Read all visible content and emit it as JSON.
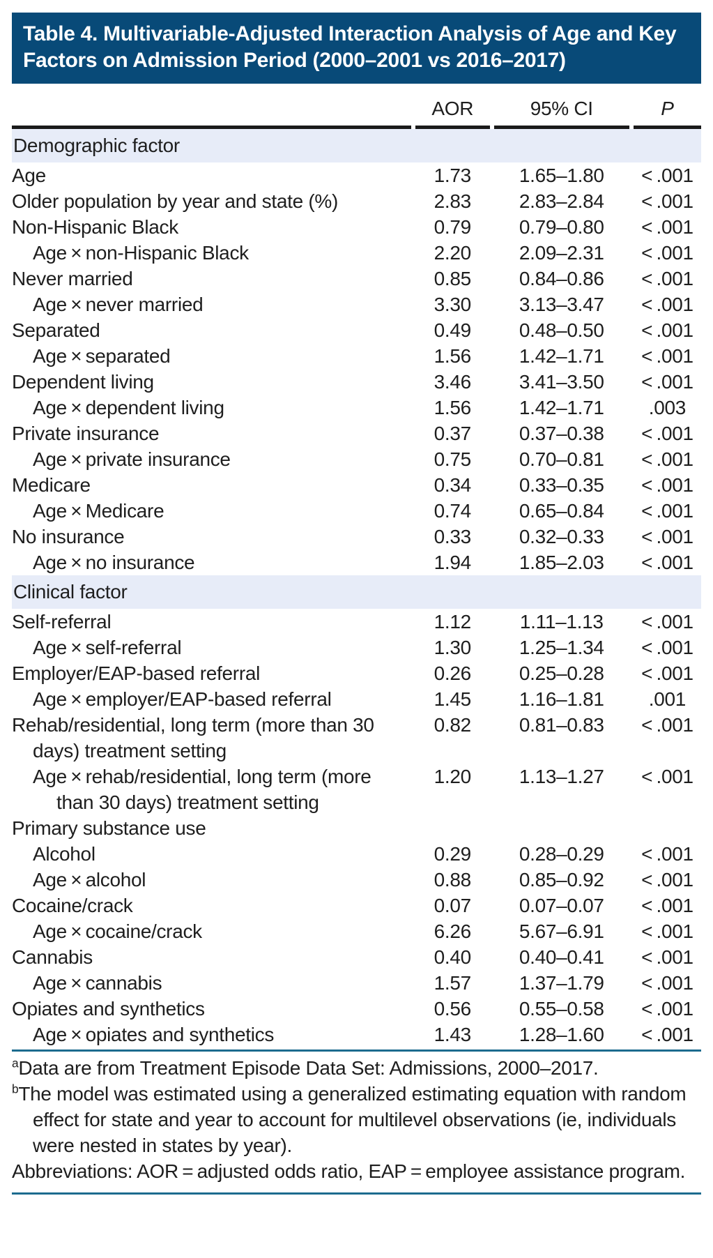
{
  "title": "Table 4. Multivariable-Adjusted Interaction Analysis of Age and Key Factors on Admission Period (2000–2001 vs 2016–2017)",
  "columns": {
    "aor": "AOR",
    "ci": "95% CI",
    "p": "P"
  },
  "colors": {
    "title_bar_bg": "#084a78",
    "title_text": "#ffffff",
    "section_row_bg": "#e7ecf8",
    "body_text": "#1e1e1e",
    "header_rule": "#1a1a1a",
    "accent_rule": "#1c6b8e"
  },
  "sections": [
    {
      "label": "Demographic factor",
      "rows": [
        {
          "label": "Age",
          "indent": 0,
          "aor": "1.73",
          "ci": "1.65–1.80",
          "p": "< .001"
        },
        {
          "label": "Older population by year and state (%)",
          "indent": 0,
          "aor": "2.83",
          "ci": "2.83–2.84",
          "p": "< .001"
        },
        {
          "label": "Non-Hispanic Black",
          "indent": 0,
          "aor": "0.79",
          "ci": "0.79–0.80",
          "p": "< .001"
        },
        {
          "label": "Age × non-Hispanic Black",
          "indent": 1,
          "aor": "2.20",
          "ci": "2.09–2.31",
          "p": "< .001"
        },
        {
          "label": "Never married",
          "indent": 0,
          "aor": "0.85",
          "ci": "0.84–0.86",
          "p": "< .001"
        },
        {
          "label": "Age × never married",
          "indent": 1,
          "aor": "3.30",
          "ci": "3.13–3.47",
          "p": "< .001"
        },
        {
          "label": "Separated",
          "indent": 0,
          "aor": "0.49",
          "ci": "0.48–0.50",
          "p": "< .001"
        },
        {
          "label": "Age × separated",
          "indent": 1,
          "aor": "1.56",
          "ci": "1.42–1.71",
          "p": "< .001"
        },
        {
          "label": "Dependent living",
          "indent": 0,
          "aor": "3.46",
          "ci": "3.41–3.50",
          "p": "< .001"
        },
        {
          "label": "Age × dependent living",
          "indent": 1,
          "aor": "1.56",
          "ci": "1.42–1.71",
          "p": ".003"
        },
        {
          "label": "Private insurance",
          "indent": 0,
          "aor": "0.37",
          "ci": "0.37–0.38",
          "p": "< .001"
        },
        {
          "label": "Age × private insurance",
          "indent": 1,
          "aor": "0.75",
          "ci": "0.70–0.81",
          "p": "< .001"
        },
        {
          "label": "Medicare",
          "indent": 0,
          "aor": "0.34",
          "ci": "0.33–0.35",
          "p": "< .001"
        },
        {
          "label": "Age × Medicare",
          "indent": 1,
          "aor": "0.74",
          "ci": "0.65–0.84",
          "p": "< .001"
        },
        {
          "label": "No insurance",
          "indent": 0,
          "aor": "0.33",
          "ci": "0.32–0.33",
          "p": "< .001"
        },
        {
          "label": "Age × no insurance",
          "indent": 1,
          "aor": "1.94",
          "ci": "1.85–2.03",
          "p": "< .001"
        }
      ]
    },
    {
      "label": "Clinical factor",
      "rows": [
        {
          "label": "Self-referral",
          "indent": 0,
          "aor": "1.12",
          "ci": "1.11–1.13",
          "p": "< .001"
        },
        {
          "label": "Age × self-referral",
          "indent": 1,
          "aor": "1.30",
          "ci": "1.25–1.34",
          "p": "< .001"
        },
        {
          "label": "Employer/EAP-based referral",
          "indent": 0,
          "aor": "0.26",
          "ci": "0.25–0.28",
          "p": "< .001"
        },
        {
          "label": "Age × employer/EAP-based referral",
          "indent": 1,
          "aor": "1.45",
          "ci": "1.16–1.81",
          "p": ".001"
        },
        {
          "label": "Rehab/residential, long term (more than 30 days) treatment setting",
          "indent": 0,
          "aor": "0.82",
          "ci": "0.81–0.83",
          "p": "< .001"
        },
        {
          "label": "Age × rehab/residential, long term (more than 30 days) treatment setting",
          "indent": 1,
          "aor": "1.20",
          "ci": "1.13–1.27",
          "p": "< .001"
        },
        {
          "label": "Primary substance use",
          "indent": 0,
          "aor": "",
          "ci": "",
          "p": ""
        },
        {
          "label": "Alcohol",
          "indent": 1,
          "aor": "0.29",
          "ci": "0.28–0.29",
          "p": "< .001"
        },
        {
          "label": "Age × alcohol",
          "indent": 1,
          "aor": "0.88",
          "ci": "0.85–0.92",
          "p": "< .001"
        },
        {
          "label": "Cocaine/crack",
          "indent": 0,
          "aor": "0.07",
          "ci": "0.07–0.07",
          "p": "< .001"
        },
        {
          "label": "Age × cocaine/crack",
          "indent": 1,
          "aor": "6.26",
          "ci": "5.67–6.91",
          "p": "< .001"
        },
        {
          "label": "Cannabis",
          "indent": 0,
          "aor": "0.40",
          "ci": "0.40–0.41",
          "p": "< .001"
        },
        {
          "label": "Age × cannabis",
          "indent": 1,
          "aor": "1.57",
          "ci": "1.37–1.79",
          "p": "< .001"
        },
        {
          "label": "Opiates and synthetics",
          "indent": 0,
          "aor": "0.56",
          "ci": "0.55–0.58",
          "p": "< .001"
        },
        {
          "label": "Age × opiates and synthetics",
          "indent": 1,
          "aor": "1.43",
          "ci": "1.28–1.60",
          "p": "< .001"
        }
      ]
    }
  ],
  "footnotes": [
    {
      "marker": "a",
      "text": "Data are from Treatment Episode Data Set: Admissions, 2000–2017."
    },
    {
      "marker": "b",
      "text": "The model was estimated using a generalized estimating equation with random effect for state and year to account for multilevel observations (ie, individuals were nested in states by year)."
    },
    {
      "marker": "",
      "text": "Abbreviations: AOR = adjusted odds ratio, EAP = employee assistance program."
    }
  ]
}
